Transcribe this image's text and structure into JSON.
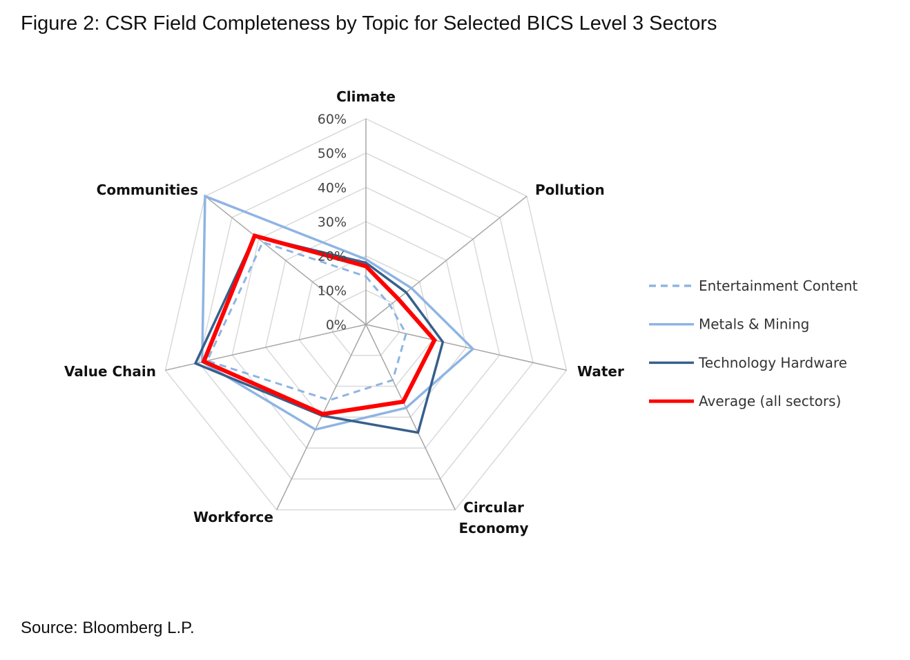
{
  "title": "Figure 2: CSR Field Completeness by Topic for Selected BICS Level 3 Sectors",
  "source": "Source: Bloomberg L.P.",
  "chart_data": {
    "type": "radar",
    "title": "Figure 2: CSR Field Completeness by Topic for Selected BICS Level 3 Sectors",
    "categories": [
      "Climate",
      "Pollution",
      "Water",
      "Circular Economy",
      "Workforce",
      "Value Chain",
      "Communities"
    ],
    "category_lines": [
      [
        "Climate"
      ],
      [
        "Pollution"
      ],
      [
        "Water"
      ],
      [
        "Circular",
        "Economy"
      ],
      [
        "Workforce"
      ],
      [
        "Value Chain"
      ],
      [
        "Communities"
      ]
    ],
    "rlim": [
      0,
      60
    ],
    "ticks": [
      "0%",
      "10%",
      "20%",
      "30%",
      "40%",
      "50%",
      "60%"
    ],
    "legend_position": "right",
    "series": [
      {
        "name": "Entertainment Content",
        "color": "#8eb4e3",
        "dash": true,
        "width": 3,
        "values": [
          14,
          9,
          12,
          18,
          24.5,
          47.5,
          38.5
        ]
      },
      {
        "name": "Metals & Mining",
        "color": "#8eb4e3",
        "dash": false,
        "width": 3.5,
        "values": [
          19,
          17,
          32,
          27,
          34,
          49,
          60
        ]
      },
      {
        "name": "Technology Hardware",
        "color": "#375f8c",
        "dash": false,
        "width": 3.5,
        "values": [
          18,
          15,
          23,
          35,
          29.5,
          51,
          41.5
        ]
      },
      {
        "name": "Average (all sectors)",
        "color": "#ff0000",
        "dash": false,
        "width": 6,
        "values": [
          17,
          12,
          20.5,
          25,
          29,
          48.5,
          41.5
        ]
      }
    ]
  }
}
